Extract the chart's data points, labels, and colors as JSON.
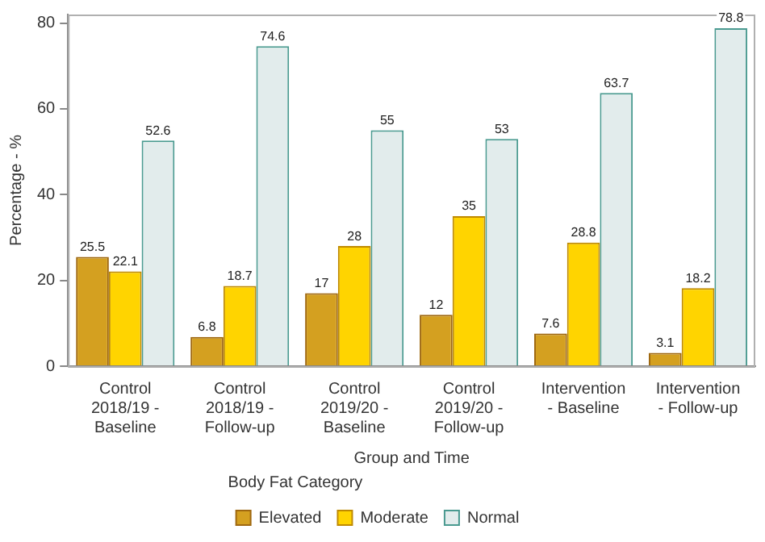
{
  "chart_data": {
    "type": "bar",
    "xlabel": "Group and Time",
    "ylabel": "Percentage - %",
    "legend_title": "Body Fat Category",
    "categories": [
      "Control 2018/19 - Baseline",
      "Control 2018/19 - Follow-up",
      "Control 2019/20 - Baseline",
      "Control 2019/20 - Follow-up",
      "Intervention - Baseline",
      "Intervention - Follow-up"
    ],
    "series": [
      {
        "name": "Elevated",
        "color": "#d4a020",
        "values": [
          25.5,
          6.8,
          17,
          12,
          7.6,
          3.1
        ]
      },
      {
        "name": "Moderate",
        "color": "#ffd400",
        "values": [
          22.1,
          18.7,
          28,
          35,
          28.8,
          18.2
        ]
      },
      {
        "name": "Normal",
        "color": "#e2ecec",
        "values": [
          52.6,
          74.6,
          55,
          53,
          63.7,
          78.8
        ]
      }
    ],
    "ylim": [
      0,
      82
    ],
    "yticks": [
      0,
      20,
      40,
      60,
      80
    ],
    "grid": false,
    "legend": "bottom",
    "data_labels": true
  }
}
